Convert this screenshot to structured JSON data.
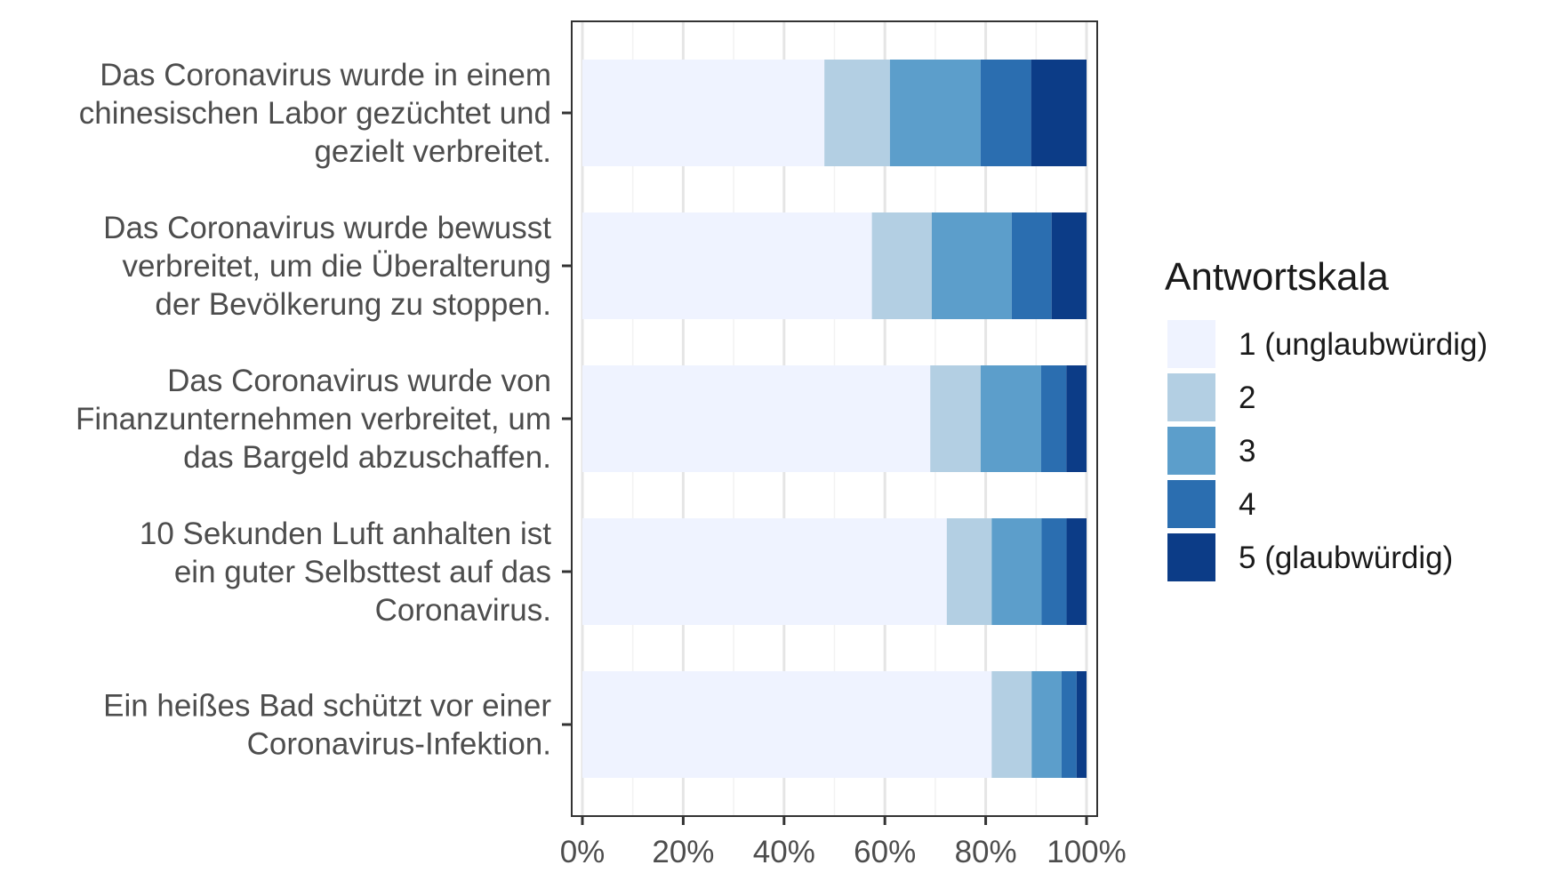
{
  "chart_data": {
    "type": "bar",
    "orientation": "horizontal",
    "stacked": true,
    "percent": true,
    "categories": [
      [
        "Das Coronavirus wurde in einem",
        "chinesischen Labor gezüchtet und",
        "gezielt verbreitet."
      ],
      [
        "Das Coronavirus wurde bewusst",
        "verbreitet, um die Überalterung",
        "der Bevölkerung zu stoppen."
      ],
      [
        "Das Coronavirus wurde von",
        "Finanzunternehmen verbreitet, um",
        "das Bargeld abzuschaffen."
      ],
      [
        "10 Sekunden Luft anhalten ist",
        "ein guter Selbsttest auf das",
        "Coronavirus."
      ],
      [
        "Ein heißes Bad schützt vor einer",
        "Coronavirus-Infektion."
      ]
    ],
    "series": [
      {
        "name": "1 (unglaubwürdig)",
        "color": "#eff3ff",
        "values": [
          48,
          58,
          69,
          73,
          82
        ]
      },
      {
        "name": "2",
        "color": "#b3cfe3",
        "values": [
          13,
          12,
          10,
          9,
          8
        ]
      },
      {
        "name": "3",
        "color": "#5c9ecb",
        "values": [
          18,
          16,
          12,
          10,
          6
        ]
      },
      {
        "name": "4",
        "color": "#2b6eb0",
        "values": [
          10,
          8,
          5,
          5,
          3
        ]
      },
      {
        "name": "5 (glaubwürdig)",
        "color": "#0c3c87",
        "values": [
          11,
          7,
          4,
          4,
          2
        ]
      }
    ],
    "xticks": [
      "0%",
      "20%",
      "40%",
      "60%",
      "80%",
      "100%"
    ],
    "xlim": [
      0,
      100
    ],
    "grid": true,
    "legend": {
      "title": "Antwortskala",
      "position": "right"
    },
    "title": "",
    "xlabel": "",
    "ylabel": ""
  }
}
